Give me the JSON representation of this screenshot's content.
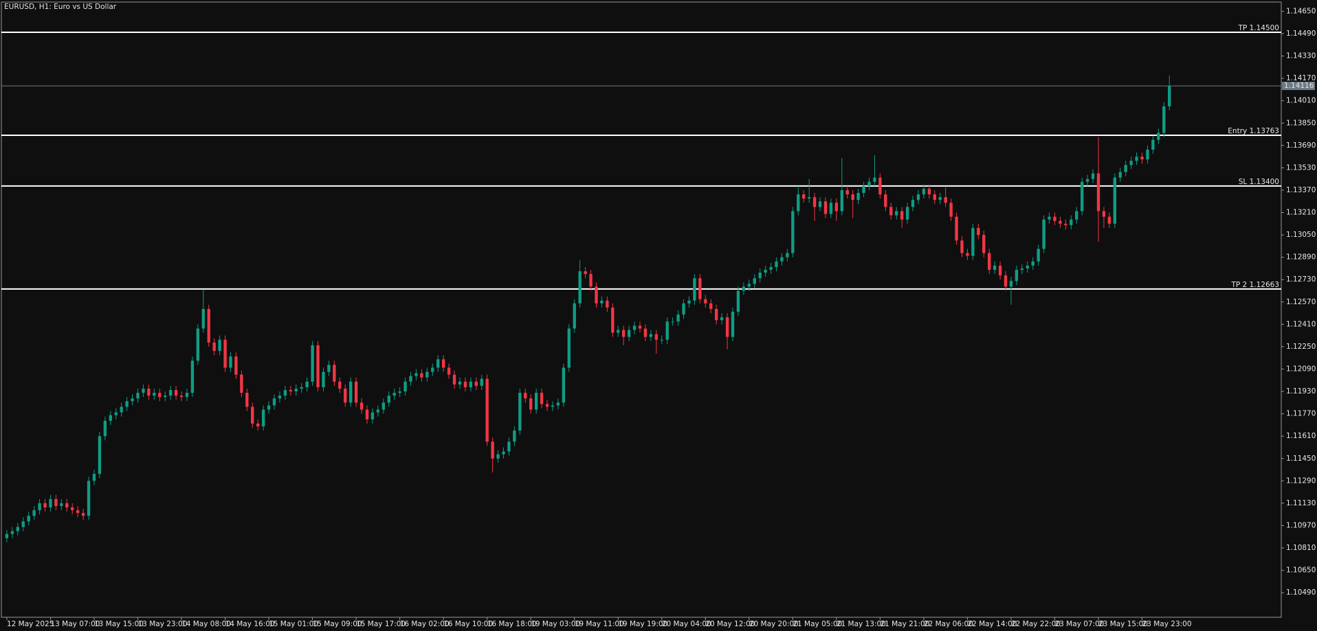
{
  "chart_data": {
    "type": "candlestick",
    "title": "EURUSD, H1:  Euro vs US Dollar",
    "up_color": "#0f9d84",
    "down_color": "#f23645",
    "background": "#0f0f0f",
    "level_color": "#ffffff",
    "price_line_color": "#6b7a86",
    "xlim": [
      -1,
      233.5
    ],
    "ylim": [
      1.10314,
      1.14716
    ],
    "yticks": [
      {
        "value": 1.1049,
        "label": "1.10490"
      },
      {
        "value": 1.1065,
        "label": "1.10650"
      },
      {
        "value": 1.1081,
        "label": "1.10810"
      },
      {
        "value": 1.1097,
        "label": "1.10970"
      },
      {
        "value": 1.1113,
        "label": "1.11130"
      },
      {
        "value": 1.1129,
        "label": "1.11290"
      },
      {
        "value": 1.1145,
        "label": "1.11450"
      },
      {
        "value": 1.1161,
        "label": "1.11610"
      },
      {
        "value": 1.1177,
        "label": "1.11770"
      },
      {
        "value": 1.1193,
        "label": "1.11930"
      },
      {
        "value": 1.1209,
        "label": "1.12090"
      },
      {
        "value": 1.1225,
        "label": "1.12250"
      },
      {
        "value": 1.1241,
        "label": "1.12410"
      },
      {
        "value": 1.1257,
        "label": "1.12570"
      },
      {
        "value": 1.1273,
        "label": "1.12730"
      },
      {
        "value": 1.1289,
        "label": "1.12890"
      },
      {
        "value": 1.1305,
        "label": "1.13050"
      },
      {
        "value": 1.1321,
        "label": "1.13210"
      },
      {
        "value": 1.1337,
        "label": "1.13370"
      },
      {
        "value": 1.1353,
        "label": "1.13530"
      },
      {
        "value": 1.1369,
        "label": "1.13690"
      },
      {
        "value": 1.1385,
        "label": "1.13850"
      },
      {
        "value": 1.1401,
        "label": "1.14010"
      },
      {
        "value": 1.1417,
        "label": "1.14170"
      },
      {
        "value": 1.1433,
        "label": "1.14330"
      },
      {
        "value": 1.1449,
        "label": "1.14490"
      },
      {
        "value": 1.1465,
        "label": "1.14650"
      }
    ],
    "xticks": [
      {
        "value": 0,
        "label": "12 May 2025"
      },
      {
        "value": 8,
        "label": "13 May 07:00"
      },
      {
        "value": 16,
        "label": "13 May 15:00"
      },
      {
        "value": 24,
        "label": "13 May 23:00"
      },
      {
        "value": 32,
        "label": "14 May 08:00"
      },
      {
        "value": 40,
        "label": "14 May 16:00"
      },
      {
        "value": 48,
        "label": "15 May 01:00"
      },
      {
        "value": 56,
        "label": "15 May 09:00"
      },
      {
        "value": 64,
        "label": "15 May 17:00"
      },
      {
        "value": 72,
        "label": "16 May 02:00"
      },
      {
        "value": 80,
        "label": "16 May 10:00"
      },
      {
        "value": 88,
        "label": "16 May 18:00"
      },
      {
        "value": 96,
        "label": "19 May 03:00"
      },
      {
        "value": 104,
        "label": "19 May 11:00"
      },
      {
        "value": 112,
        "label": "19 May 19:00"
      },
      {
        "value": 120,
        "label": "20 May 04:00"
      },
      {
        "value": 128,
        "label": "20 May 12:00"
      },
      {
        "value": 136,
        "label": "20 May 20:00"
      },
      {
        "value": 144,
        "label": "21 May 05:00"
      },
      {
        "value": 152,
        "label": "21 May 13:00"
      },
      {
        "value": 160,
        "label": "21 May 21:00"
      },
      {
        "value": 168,
        "label": "22 May 06:00"
      },
      {
        "value": 176,
        "label": "22 May 14:00"
      },
      {
        "value": 184,
        "label": "22 May 22:00"
      },
      {
        "value": 192,
        "label": "23 May 07:00"
      },
      {
        "value": 200,
        "label": "23 May 15:00"
      },
      {
        "value": 208,
        "label": "23 May 23:00"
      }
    ],
    "levels": [
      {
        "label": "TP 1.14500",
        "value": 1.145
      },
      {
        "label": "Entry 1.13763",
        "value": 1.13763
      },
      {
        "label": "SL 1.13400",
        "value": 1.134
      },
      {
        "label": "TP 2 1.12663",
        "value": 1.12663
      }
    ],
    "current_price": 1.14116,
    "open": [
      1.1088,
      1.1091,
      1.1093,
      1.1096,
      1.11,
      1.1104,
      1.1108,
      1.1113,
      1.111,
      1.1116,
      1.1111,
      1.1113,
      1.111,
      1.1108,
      1.1106,
      1.1104,
      1.1129,
      1.1134,
      1.1161,
      1.1172,
      1.1176,
      1.1178,
      1.1182,
      1.1186,
      1.1188,
      1.1192,
      1.1195,
      1.119,
      1.1192,
      1.1189,
      1.119,
      1.1194,
      1.119,
      1.1189,
      1.1192,
      1.1215,
      1.1238,
      1.1252,
      1.1228,
      1.1222,
      1.123,
      1.121,
      1.1218,
      1.1205,
      1.1192,
      1.1182,
      1.117,
      1.1168,
      1.118,
      1.1183,
      1.1188,
      1.119,
      1.1194,
      1.1193,
      1.1195,
      1.1196,
      1.12,
      1.1226,
      1.1196,
      1.1207,
      1.1212,
      1.12,
      1.1195,
      1.1185,
      1.12,
      1.1185,
      1.118,
      1.1173,
      1.1178,
      1.118,
      1.1185,
      1.119,
      1.1192,
      1.1193,
      1.12,
      1.1204,
      1.1206,
      1.1203,
      1.1207,
      1.121,
      1.1216,
      1.121,
      1.1205,
      1.1198,
      1.12,
      1.1196,
      1.12,
      1.1197,
      1.1202,
      1.1157,
      1.1145,
      1.1148,
      1.115,
      1.1157,
      1.1165,
      1.1192,
      1.1188,
      1.118,
      1.1192,
      1.1184,
      1.1182,
      1.1183,
      1.1185,
      1.121,
      1.1238,
      1.1256,
      1.1279,
      1.1277,
      1.1268,
      1.1256,
      1.1258,
      1.1253,
      1.1235,
      1.1237,
      1.1232,
      1.1237,
      1.124,
      1.1238,
      1.1232,
      1.1234,
      1.123,
      1.123,
      1.1243,
      1.1243,
      1.1248,
      1.1256,
      1.1258,
      1.1274,
      1.1259,
      1.1256,
      1.1252,
      1.1244,
      1.1246,
      1.1232,
      1.125,
      1.1265,
      1.1268,
      1.127,
      1.1274,
      1.1278,
      1.128,
      1.1282,
      1.1286,
      1.1289,
      1.1292,
      1.1322,
      1.1334,
      1.1331,
      1.1332,
      1.1325,
      1.1329,
      1.132,
      1.1328,
      1.1322,
      1.1337,
      1.1334,
      1.133,
      1.1335,
      1.134,
      1.1343,
      1.1346,
      1.1334,
      1.1325,
      1.1319,
      1.1322,
      1.1316,
      1.1325,
      1.133,
      1.1334,
      1.1338,
      1.1334,
      1.133,
      1.1332,
      1.1328,
      1.1318,
      1.1301,
      1.1292,
      1.129,
      1.131,
      1.1305,
      1.1292,
      1.128,
      1.1283,
      1.1276,
      1.1268,
      1.1272,
      1.128,
      1.1281,
      1.1283,
      1.1286,
      1.1295,
      1.1316,
      1.1318,
      1.1315,
      1.1313,
      1.1312,
      1.1316,
      1.1322,
      1.1343,
      1.1345,
      1.1349,
      1.1322,
      1.1318,
      1.1313,
      1.1346,
      1.135,
      1.1355,
      1.1358,
      1.1361,
      1.1359,
      1.1366,
      1.1373,
      1.1378,
      1.1397
    ],
    "high": [
      1.1094,
      1.1096,
      1.1099,
      1.1103,
      1.1107,
      1.1111,
      1.1116,
      1.1116,
      1.1119,
      1.1119,
      1.1116,
      1.1116,
      1.1113,
      1.1111,
      1.1109,
      1.1132,
      1.1137,
      1.1164,
      1.1175,
      1.1179,
      1.1181,
      1.1185,
      1.1189,
      1.1191,
      1.1195,
      1.1198,
      1.1198,
      1.1195,
      1.1195,
      1.1193,
      1.1197,
      1.1197,
      1.1193,
      1.1195,
      1.1218,
      1.1241,
      1.1266,
      1.1255,
      1.1231,
      1.1233,
      1.1233,
      1.1221,
      1.1221,
      1.1208,
      1.1195,
      1.1185,
      1.1173,
      1.1183,
      1.1186,
      1.1191,
      1.1193,
      1.1197,
      1.1197,
      1.1198,
      1.1199,
      1.1203,
      1.1229,
      1.1229,
      1.121,
      1.1215,
      1.1215,
      1.1203,
      1.1198,
      1.1203,
      1.1203,
      1.1188,
      1.1183,
      1.1181,
      1.1183,
      1.1188,
      1.1193,
      1.1195,
      1.1196,
      1.1203,
      1.1207,
      1.1209,
      1.1209,
      1.121,
      1.1213,
      1.1219,
      1.1219,
      1.1213,
      1.1208,
      1.1203,
      1.1203,
      1.1203,
      1.1203,
      1.1205,
      1.1205,
      1.116,
      1.1151,
      1.1153,
      1.116,
      1.1168,
      1.1195,
      1.1195,
      1.1191,
      1.1195,
      1.1195,
      1.1187,
      1.1186,
      1.1188,
      1.1213,
      1.1241,
      1.1259,
      1.1287,
      1.1282,
      1.128,
      1.1271,
      1.1261,
      1.1261,
      1.1256,
      1.124,
      1.124,
      1.124,
      1.1243,
      1.1243,
      1.1241,
      1.1237,
      1.1237,
      1.1233,
      1.1246,
      1.1246,
      1.1251,
      1.1259,
      1.1261,
      1.1277,
      1.1277,
      1.1262,
      1.1259,
      1.1255,
      1.1249,
      1.1249,
      1.1253,
      1.1268,
      1.1271,
      1.1273,
      1.1277,
      1.1281,
      1.1283,
      1.1285,
      1.1289,
      1.1292,
      1.1295,
      1.1325,
      1.134,
      1.1337,
      1.1345,
      1.1335,
      1.1332,
      1.1332,
      1.1331,
      1.1331,
      1.136,
      1.134,
      1.1337,
      1.1338,
      1.1343,
      1.1346,
      1.1362,
      1.1349,
      1.1337,
      1.1328,
      1.1325,
      1.1325,
      1.1328,
      1.1333,
      1.1337,
      1.1341,
      1.1341,
      1.1337,
      1.1335,
      1.1339,
      1.1331,
      1.1321,
      1.1304,
      1.1295,
      1.1313,
      1.1313,
      1.1308,
      1.1295,
      1.1286,
      1.1286,
      1.1279,
      1.1275,
      1.1283,
      1.1284,
      1.1286,
      1.1289,
      1.1298,
      1.1319,
      1.1321,
      1.1321,
      1.1318,
      1.1316,
      1.1319,
      1.1325,
      1.1346,
      1.1348,
      1.1352,
      1.1375,
      1.1325,
      1.1321,
      1.1349,
      1.1353,
      1.1358,
      1.1361,
      1.1364,
      1.1364,
      1.1369,
      1.1376,
      1.1381,
      1.14,
      1.1419
    ],
    "low": [
      1.1085,
      1.1088,
      1.109,
      1.1093,
      1.1097,
      1.1101,
      1.1105,
      1.1107,
      1.1107,
      1.1108,
      1.1108,
      1.1107,
      1.1105,
      1.1103,
      1.1101,
      1.1101,
      1.1126,
      1.1131,
      1.1158,
      1.1169,
      1.1173,
      1.1175,
      1.1179,
      1.1183,
      1.1185,
      1.1189,
      1.1187,
      1.1187,
      1.1186,
      1.1186,
      1.1187,
      1.1187,
      1.1186,
      1.1186,
      1.1189,
      1.1212,
      1.1235,
      1.1225,
      1.1219,
      1.1219,
      1.1207,
      1.1207,
      1.1202,
      1.1189,
      1.1179,
      1.1167,
      1.1165,
      1.1165,
      1.1177,
      1.118,
      1.1185,
      1.1187,
      1.119,
      1.119,
      1.1192,
      1.1193,
      1.1197,
      1.1193,
      1.1193,
      1.1204,
      1.1197,
      1.1192,
      1.1182,
      1.1182,
      1.1182,
      1.1177,
      1.117,
      1.117,
      1.1175,
      1.1177,
      1.1182,
      1.1187,
      1.1189,
      1.119,
      1.1197,
      1.1201,
      1.12,
      1.12,
      1.1204,
      1.1207,
      1.1207,
      1.1202,
      1.1195,
      1.1195,
      1.1193,
      1.1193,
      1.1194,
      1.1194,
      1.1154,
      1.1135,
      1.1142,
      1.1145,
      1.1147,
      1.1154,
      1.1162,
      1.1185,
      1.1177,
      1.1177,
      1.1181,
      1.1179,
      1.1179,
      1.118,
      1.1182,
      1.1207,
      1.1235,
      1.1253,
      1.1274,
      1.1265,
      1.1253,
      1.1253,
      1.125,
      1.1232,
      1.1232,
      1.1226,
      1.1229,
      1.1234,
      1.1235,
      1.1229,
      1.1229,
      1.122,
      1.1227,
      1.1227,
      1.124,
      1.124,
      1.1245,
      1.1253,
      1.1255,
      1.1256,
      1.1253,
      1.1249,
      1.1241,
      1.1241,
      1.1223,
      1.1229,
      1.1247,
      1.1262,
      1.1265,
      1.1267,
      1.1271,
      1.1275,
      1.1277,
      1.1279,
      1.1283,
      1.1286,
      1.1289,
      1.1319,
      1.1328,
      1.1328,
      1.1315,
      1.1322,
      1.1317,
      1.1317,
      1.1315,
      1.1319,
      1.1331,
      1.1317,
      1.1327,
      1.1332,
      1.1337,
      1.134,
      1.1331,
      1.1322,
      1.1316,
      1.1316,
      1.131,
      1.1313,
      1.1322,
      1.1327,
      1.1331,
      1.1331,
      1.1327,
      1.1327,
      1.1325,
      1.1315,
      1.1298,
      1.1289,
      1.1287,
      1.1287,
      1.1302,
      1.1289,
      1.1277,
      1.1277,
      1.1273,
      1.1265,
      1.1255,
      1.1269,
      1.1277,
      1.1278,
      1.128,
      1.1283,
      1.1292,
      1.1313,
      1.1312,
      1.131,
      1.1309,
      1.1309,
      1.1313,
      1.1319,
      1.134,
      1.1342,
      1.13,
      1.131,
      1.131,
      1.131,
      1.1343,
      1.1347,
      1.1352,
      1.1355,
      1.1356,
      1.1356,
      1.1363,
      1.137,
      1.1375,
      1.1394
    ],
    "close": [
      1.1091,
      1.1093,
      1.1096,
      1.11,
      1.1104,
      1.1108,
      1.1113,
      1.111,
      1.1116,
      1.1111,
      1.1113,
      1.111,
      1.1108,
      1.1106,
      1.1104,
      1.1129,
      1.1134,
      1.1161,
      1.1172,
      1.1176,
      1.1178,
      1.1182,
      1.1186,
      1.1188,
      1.1192,
      1.1195,
      1.119,
      1.1192,
      1.1189,
      1.119,
      1.1194,
      1.119,
      1.1189,
      1.1192,
      1.1215,
      1.1238,
      1.1252,
      1.1228,
      1.1222,
      1.123,
      1.121,
      1.1218,
      1.1205,
      1.1192,
      1.1182,
      1.117,
      1.1168,
      1.118,
      1.1183,
      1.1188,
      1.119,
      1.1194,
      1.1193,
      1.1195,
      1.1196,
      1.12,
      1.1226,
      1.1196,
      1.1207,
      1.1212,
      1.12,
      1.1195,
      1.1185,
      1.12,
      1.1185,
      1.118,
      1.1173,
      1.1178,
      1.118,
      1.1185,
      1.119,
      1.1192,
      1.1193,
      1.12,
      1.1204,
      1.1206,
      1.1203,
      1.1207,
      1.121,
      1.1216,
      1.121,
      1.1205,
      1.1198,
      1.12,
      1.1196,
      1.12,
      1.1197,
      1.1202,
      1.1157,
      1.1145,
      1.1148,
      1.115,
      1.1157,
      1.1165,
      1.1192,
      1.1188,
      1.118,
      1.1192,
      1.1184,
      1.1182,
      1.1183,
      1.1185,
      1.121,
      1.1238,
      1.1256,
      1.1279,
      1.1277,
      1.1268,
      1.1256,
      1.1258,
      1.1253,
      1.1235,
      1.1237,
      1.1232,
      1.1237,
      1.124,
      1.1238,
      1.1232,
      1.1234,
      1.123,
      1.123,
      1.1243,
      1.1243,
      1.1248,
      1.1256,
      1.1258,
      1.1274,
      1.1259,
      1.1256,
      1.1252,
      1.1244,
      1.1246,
      1.1232,
      1.125,
      1.1265,
      1.1268,
      1.127,
      1.1274,
      1.1278,
      1.128,
      1.1282,
      1.1286,
      1.1289,
      1.1292,
      1.1322,
      1.1334,
      1.1331,
      1.1332,
      1.1325,
      1.1329,
      1.132,
      1.1328,
      1.1322,
      1.1337,
      1.1334,
      1.133,
      1.1335,
      1.134,
      1.1343,
      1.1346,
      1.1334,
      1.1325,
      1.1319,
      1.1322,
      1.1316,
      1.1325,
      1.133,
      1.1334,
      1.1338,
      1.1334,
      1.133,
      1.1332,
      1.1328,
      1.1318,
      1.1301,
      1.1292,
      1.129,
      1.131,
      1.1305,
      1.1292,
      1.128,
      1.1283,
      1.1276,
      1.1268,
      1.1272,
      1.128,
      1.1281,
      1.1283,
      1.1286,
      1.1295,
      1.1316,
      1.1318,
      1.1315,
      1.1313,
      1.1312,
      1.1316,
      1.1322,
      1.1343,
      1.1345,
      1.1349,
      1.1322,
      1.1318,
      1.1313,
      1.1346,
      1.135,
      1.1355,
      1.1358,
      1.1361,
      1.1359,
      1.1366,
      1.1373,
      1.1378,
      1.1397,
      1.14116
    ]
  }
}
